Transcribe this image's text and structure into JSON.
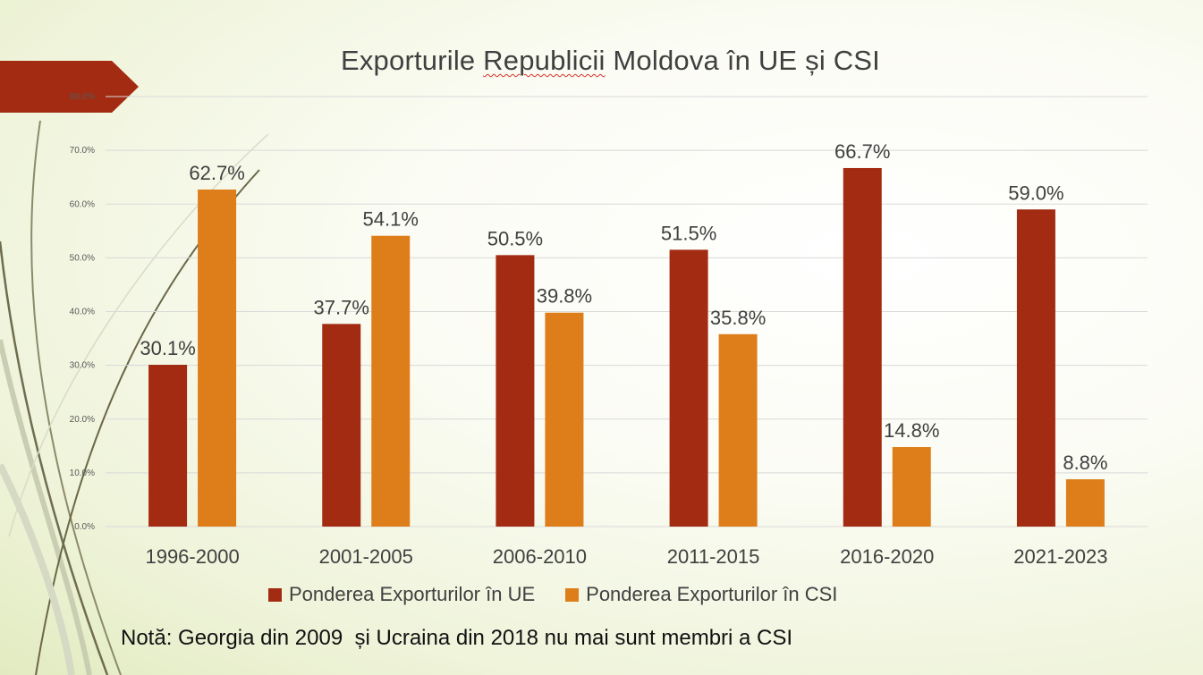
{
  "slide": {
    "title": "Exporturile Republicii Moldova în UE și CSI",
    "title_parts": [
      "Exporturile ",
      "Republicii",
      " Moldova în UE și CSI"
    ],
    "note": "Notă: Georgia din 2009  și Ucraina din 2018 nu mai sunt membri a CSI",
    "accent_color": "#a32b12"
  },
  "chart_data": {
    "type": "bar",
    "title": "Exporturile Republicii Moldova în UE și CSI",
    "categories": [
      "1996-2000",
      "2001-2005",
      "2006-2010",
      "2011-2015",
      "2016-2020",
      "2021-2023"
    ],
    "series": [
      {
        "name": "Ponderea Exporturilor în UE",
        "values": [
          30.1,
          37.7,
          50.5,
          51.5,
          66.7,
          59.0
        ],
        "color": "#a32b12"
      },
      {
        "name": "Ponderea Exporturilor în CSI",
        "values": [
          62.7,
          54.1,
          39.8,
          35.8,
          14.8,
          8.8
        ],
        "color": "#de7e1b"
      }
    ],
    "ylim": [
      0,
      80
    ],
    "yticks": [
      "0.0%",
      "10.0%",
      "20.0%",
      "30.0%",
      "40.0%",
      "50.0%",
      "60.0%",
      "70.0%",
      "80.0%"
    ],
    "value_suffix": "%",
    "grid": true,
    "legend_position": "bottom"
  }
}
